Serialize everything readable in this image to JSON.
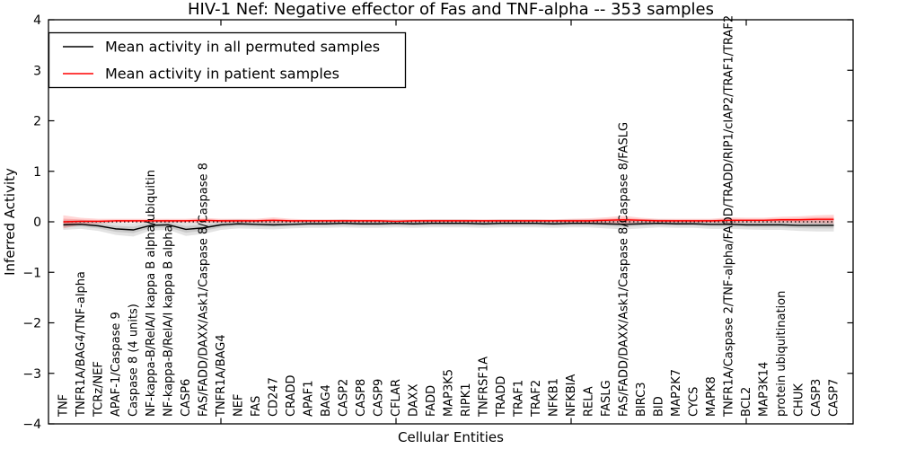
{
  "figure": {
    "title": "HIV-1 Nef: Negative effector of Fas and TNF-alpha -- 353 samples",
    "xlabel": "Cellular Entities",
    "ylabel": "Inferred Activity"
  },
  "legend": {
    "entries": [
      {
        "key": "permuted",
        "label": "Mean activity in all permuted samples",
        "color": "#000000"
      },
      {
        "key": "patient",
        "label": "Mean activity in patient samples",
        "color": "#ff0000"
      }
    ]
  },
  "colors": {
    "background": "#ffffff",
    "frame": "#000000",
    "permuted_line": "#000000",
    "patient_line": "#ff0000",
    "permuted_band": "#000000",
    "patient_band": "#ff0000"
  },
  "chart_data": {
    "type": "line",
    "title": "HIV-1 Nef: Negative effector of Fas and TNF-alpha -- 353 samples",
    "xlabel": "Cellular Entities",
    "ylabel": "Inferred Activity",
    "ylim": [
      -4,
      4
    ],
    "yticks": [
      -4,
      -3,
      -2,
      -1,
      0,
      1,
      2,
      3,
      4
    ],
    "grid": false,
    "legend_position": "upper left",
    "x_major_tick_every": 10,
    "zero_reference_line": {
      "y": 0,
      "style": "dotted",
      "color": "#000000"
    },
    "categories": [
      "TNF",
      "TNFR1A/BAG4/TNF-alpha",
      "TCRz/NEF",
      "APAF-1/Caspase 9",
      "Caspase 8 (4 units)",
      "NF-kappa-B/RelA/I kappa B alpha/ubiquitin",
      "NF-kappa-B/RelA/I kappa B alpha",
      "CASP6",
      "FAS/FADD/DAXX/Ask1/Caspase 8/Caspase 8",
      "TNFR1A/BAG4",
      "NEF",
      "FAS",
      "CD247",
      "CRADD",
      "APAF1",
      "BAG4",
      "CASP2",
      "CASP8",
      "CASP9",
      "CFLAR",
      "DAXX",
      "FADD",
      "MAP3K5",
      "RIPK1",
      "TNFRSF1A",
      "TRADD",
      "TRAF1",
      "TRAF2",
      "NFKB1",
      "NFKBIA",
      "RELA",
      "FASLG",
      "FAS/FADD/DAXX/Ask1/Caspase 8/Caspase 8/FASLG",
      "BIRC3",
      "BID",
      "MAP2K7",
      "CYCS",
      "MAPK8",
      "TNFR1A/Caspase 2/TNF-alpha/FADD/TRADD/RIP1/cIAP2/TRAF1/TRAF2",
      "BCL2",
      "MAP3K14",
      "protein ubiquitination",
      "CHUK",
      "CASP3",
      "CASP7"
    ],
    "series": [
      {
        "key": "permuted",
        "name": "Mean activity in all permuted samples",
        "color": "#000000",
        "band_color": "#000000",
        "band_opacity": 0.11,
        "values": [
          -0.06,
          -0.05,
          -0.08,
          -0.14,
          -0.16,
          -0.07,
          -0.06,
          -0.15,
          -0.12,
          -0.06,
          -0.04,
          -0.05,
          -0.06,
          -0.05,
          -0.04,
          -0.04,
          -0.03,
          -0.04,
          -0.04,
          -0.03,
          -0.04,
          -0.03,
          -0.03,
          -0.03,
          -0.04,
          -0.03,
          -0.03,
          -0.03,
          -0.04,
          -0.03,
          -0.03,
          -0.04,
          -0.05,
          -0.04,
          -0.03,
          -0.04,
          -0.04,
          -0.05,
          -0.05,
          -0.06,
          -0.06,
          -0.06,
          -0.07,
          -0.07,
          -0.07
        ],
        "band_halfwidth": [
          0.1,
          0.09,
          0.1,
          0.12,
          0.13,
          0.1,
          0.1,
          0.13,
          0.12,
          0.1,
          0.09,
          0.09,
          0.09,
          0.08,
          0.08,
          0.08,
          0.08,
          0.08,
          0.08,
          0.08,
          0.08,
          0.08,
          0.08,
          0.08,
          0.08,
          0.08,
          0.08,
          0.08,
          0.08,
          0.08,
          0.08,
          0.09,
          0.1,
          0.09,
          0.08,
          0.08,
          0.08,
          0.09,
          0.09,
          0.09,
          0.1,
          0.1,
          0.11,
          0.12,
          0.12
        ]
      },
      {
        "key": "patient",
        "name": "Mean activity in patient samples",
        "color": "#ff0000",
        "band_color": "#ff0000",
        "band_opacity": 0.16,
        "values": [
          0.0,
          0.01,
          0.01,
          0.02,
          0.02,
          0.02,
          0.02,
          0.02,
          0.03,
          0.02,
          0.02,
          0.02,
          0.03,
          0.02,
          0.02,
          0.02,
          0.02,
          0.02,
          0.02,
          0.01,
          0.02,
          0.02,
          0.02,
          0.02,
          0.02,
          0.02,
          0.02,
          0.02,
          0.02,
          0.02,
          0.02,
          0.03,
          0.04,
          0.03,
          0.02,
          0.02,
          0.02,
          0.02,
          0.03,
          0.03,
          0.03,
          0.04,
          0.04,
          0.05,
          0.05
        ],
        "band_halfwidth": [
          0.13,
          0.07,
          0.05,
          0.04,
          0.04,
          0.04,
          0.04,
          0.04,
          0.05,
          0.04,
          0.04,
          0.04,
          0.06,
          0.04,
          0.03,
          0.03,
          0.03,
          0.03,
          0.03,
          0.03,
          0.03,
          0.03,
          0.03,
          0.03,
          0.03,
          0.03,
          0.03,
          0.03,
          0.03,
          0.04,
          0.05,
          0.06,
          0.08,
          0.05,
          0.04,
          0.04,
          0.04,
          0.04,
          0.06,
          0.05,
          0.05,
          0.06,
          0.07,
          0.08,
          0.09
        ]
      }
    ]
  }
}
